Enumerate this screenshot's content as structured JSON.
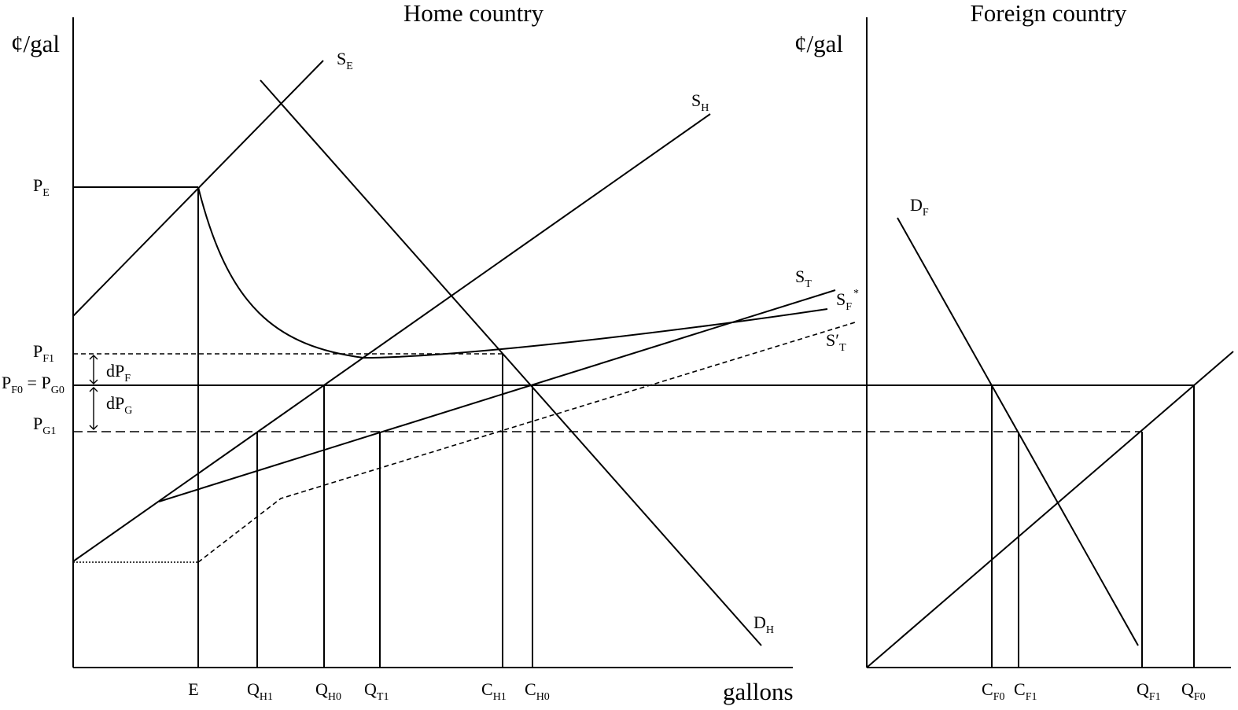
{
  "panels": {
    "home": {
      "title": "Home country",
      "y_axis_label": "¢/gal",
      "x_axis_label": "gallons"
    },
    "foreign": {
      "title": "Foreign country",
      "y_axis_label": "¢/gal"
    }
  },
  "curves": {
    "SE": {
      "main": "S",
      "sub": "E"
    },
    "SH": {
      "main": "S",
      "sub": "H"
    },
    "DH": {
      "main": "D",
      "sub": "H"
    },
    "ST": {
      "main": "S",
      "sub": "T"
    },
    "SF_star": {
      "main": "S",
      "sub": "F",
      "sup": "*"
    },
    "ST_prime": {
      "main": "S′",
      "sub": "T"
    },
    "DF": {
      "main": "D",
      "sub": "F"
    }
  },
  "price_labels": {
    "PE": {
      "main": "P",
      "sub": "E"
    },
    "PF1": {
      "main": "P",
      "sub": "F1"
    },
    "dPF": {
      "main": "dP",
      "sub": "F"
    },
    "PF0_PG0": {
      "main1": "P",
      "sub1": "F0",
      "eq": " = ",
      "main2": "P",
      "sub2": "G0"
    },
    "dPG": {
      "main": "dP",
      "sub": "G"
    },
    "PG1": {
      "main": "P",
      "sub": "G1"
    }
  },
  "quantity_labels": {
    "E": {
      "main": "E"
    },
    "QH1": {
      "main": "Q",
      "sub": "H1"
    },
    "QH0": {
      "main": "Q",
      "sub": "H0"
    },
    "QT1": {
      "main": "Q",
      "sub": "T1"
    },
    "CH1": {
      "main": "C",
      "sub": "H1"
    },
    "CH0": {
      "main": "C",
      "sub": "H0"
    },
    "CF0": {
      "main": "C",
      "sub": "F0"
    },
    "CF1": {
      "main": "C",
      "sub": "F1"
    },
    "QF1": {
      "main": "Q",
      "sub": "F1"
    },
    "QF0": {
      "main": "Q",
      "sub": "F0"
    }
  }
}
